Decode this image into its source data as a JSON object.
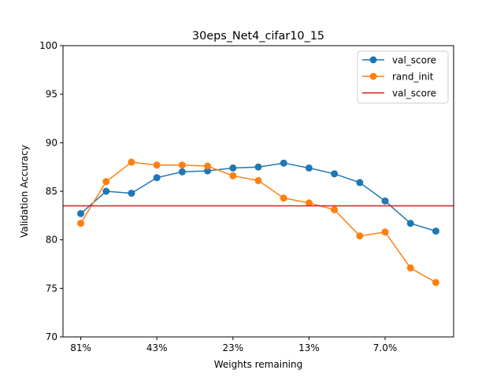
{
  "chart_data": {
    "type": "line",
    "title": "30eps_Net4_cifar10_15",
    "xlabel": "Weights remaining",
    "ylabel": "Validation Accuracy",
    "ylim": [
      70,
      100
    ],
    "yticks": [
      70,
      75,
      80,
      85,
      90,
      95,
      100
    ],
    "xlim": [
      -0.7,
      14.7
    ],
    "xticks": [
      {
        "pos": 0,
        "label": "81%"
      },
      {
        "pos": 3,
        "label": "43%"
      },
      {
        "pos": 6,
        "label": "23%"
      },
      {
        "pos": 9,
        "label": "13%"
      },
      {
        "pos": 12,
        "label": "7.0%"
      }
    ],
    "x": [
      0,
      1,
      2,
      3,
      4,
      5,
      6,
      7,
      8,
      9,
      10,
      11,
      12,
      13,
      14
    ],
    "series": [
      {
        "name": "val_score",
        "color": "#1f77b4",
        "values": [
          82.7,
          85.0,
          84.8,
          86.4,
          87.0,
          87.1,
          87.4,
          87.5,
          87.9,
          87.4,
          86.8,
          85.9,
          84.0,
          81.7,
          80.9
        ]
      },
      {
        "name": "rand_init",
        "color": "#ff7f0e",
        "values": [
          81.7,
          86.0,
          88.0,
          87.7,
          87.7,
          87.6,
          86.6,
          86.1,
          84.3,
          83.8,
          83.1,
          80.4,
          80.8,
          77.1,
          75.6
        ]
      }
    ],
    "hline": {
      "name": "val_score",
      "color": "#e41a1c",
      "value": 83.5
    },
    "legend": "top-right",
    "grid": false
  }
}
